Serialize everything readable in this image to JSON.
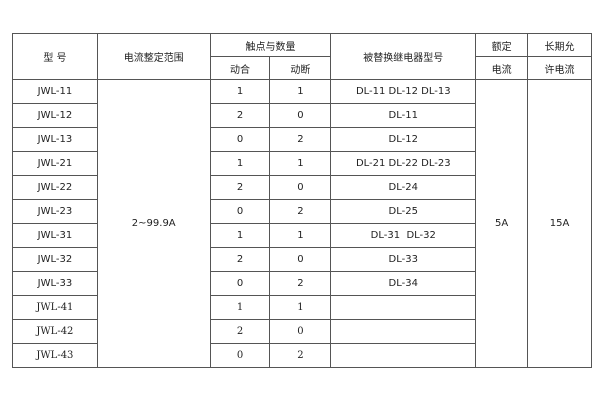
{
  "headers": {
    "model": "型  号",
    "current_range": "电流整定范围",
    "contacts": "触点与数量",
    "make": "动合",
    "break": "动断",
    "replaces": "被替换继电器型号",
    "rated_current_1": "额定",
    "rated_current_2": "电流",
    "long_term_1": "长期允",
    "long_term_2": "许电流"
  },
  "current_range": "2~99.9A",
  "rated_current": "5A",
  "long_term_current": "15A",
  "rows": [
    {
      "model": "JWL-11",
      "make": "1",
      "break": "1",
      "replaces": "DL-11 DL-12 DL-13"
    },
    {
      "model": "JWL-12",
      "make": "2",
      "break": "0",
      "replaces": "DL-11"
    },
    {
      "model": "JWL-13",
      "make": "0",
      "break": "2",
      "replaces": "DL-12"
    },
    {
      "model": "JWL-21",
      "make": "1",
      "break": "1",
      "replaces": "DL-21 DL-22 DL-23"
    },
    {
      "model": "JWL-22",
      "make": "2",
      "break": "0",
      "replaces": "DL-24"
    },
    {
      "model": "JWL-23",
      "make": "0",
      "break": "2",
      "replaces": "DL-25"
    },
    {
      "model": "JWL-31",
      "make": "1",
      "break": "1",
      "replaces": "DL-31  DL-32"
    },
    {
      "model": "JWL-32",
      "make": "2",
      "break": "0",
      "replaces": "DL-33"
    },
    {
      "model": "JWL-33",
      "make": "0",
      "break": "2",
      "replaces": "DL-34"
    },
    {
      "model": "JWL-41",
      "make": "1",
      "break": "1",
      "replaces": ""
    },
    {
      "model": "JWL-42",
      "make": "2",
      "break": "0",
      "replaces": ""
    },
    {
      "model": "JWL-43",
      "make": "0",
      "break": "2",
      "replaces": ""
    }
  ]
}
